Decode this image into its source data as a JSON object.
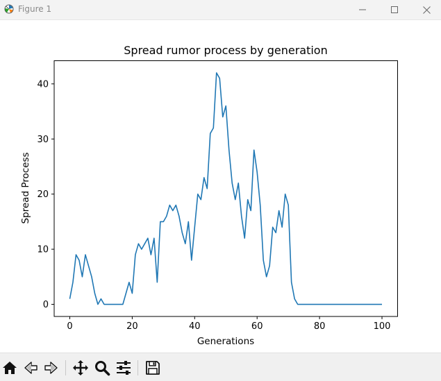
{
  "window": {
    "title": "Figure 1"
  },
  "chart_data": {
    "type": "line",
    "title": "Spread rumor process by generation",
    "xlabel": "Generations",
    "ylabel": "Spread Process",
    "xlim": [
      -5,
      105
    ],
    "ylim": [
      -2.2,
      44.2
    ],
    "xticks": [
      0,
      20,
      40,
      60,
      80,
      100
    ],
    "yticks": [
      0,
      10,
      20,
      30,
      40
    ],
    "grid": false,
    "legend": "none",
    "line_color": "#1f77b4",
    "series": [
      {
        "x": [
          0,
          1,
          2,
          3,
          4,
          5,
          6,
          7,
          8,
          9,
          10,
          11,
          12,
          13,
          14,
          15,
          16,
          17,
          18,
          19,
          20,
          21,
          22,
          23,
          24,
          25,
          26,
          27,
          28,
          29,
          30,
          31,
          32,
          33,
          34,
          35,
          36,
          37,
          38,
          39,
          40,
          41,
          42,
          43,
          44,
          45,
          46,
          47,
          48,
          49,
          50,
          51,
          52,
          53,
          54,
          55,
          56,
          57,
          58,
          59,
          60,
          61,
          62,
          63,
          64,
          65,
          66,
          67,
          68,
          69,
          70,
          71,
          72,
          73,
          74,
          75,
          76,
          77,
          78,
          79,
          80,
          81,
          82,
          83,
          84,
          85,
          86,
          87,
          88,
          89,
          90,
          91,
          92,
          93,
          94,
          95,
          96,
          97,
          98,
          99,
          100
        ],
        "values": [
          1,
          4,
          9,
          8,
          5,
          9,
          7,
          5,
          2,
          0,
          1,
          0,
          0,
          0,
          0,
          0,
          0,
          0,
          2,
          4,
          2,
          9,
          11,
          10,
          11,
          12,
          9,
          12,
          4,
          15,
          15,
          16,
          18,
          17,
          18,
          16,
          13,
          11,
          15,
          8,
          14,
          20,
          19,
          23,
          21,
          31,
          32,
          42,
          41,
          34,
          36,
          28,
          22,
          19,
          22,
          16,
          12,
          19,
          17,
          28,
          24,
          18,
          8,
          5,
          7,
          14,
          13,
          17,
          14,
          20,
          18,
          4,
          1,
          0,
          0,
          0,
          0,
          0,
          0,
          0,
          0,
          0,
          0,
          0,
          0,
          0,
          0,
          0,
          0,
          0,
          0,
          0,
          0,
          0,
          0,
          0,
          0,
          0,
          0,
          0,
          0
        ]
      }
    ]
  }
}
